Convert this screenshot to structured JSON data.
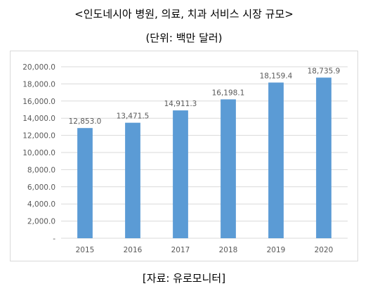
{
  "header": {
    "title": "<인도네시아 병원, 의료, 치과 서비스 시장 규모>",
    "unit_note": "(단위: 백만 달러)"
  },
  "footer": {
    "source": "[자료: 유로모니터]"
  },
  "colors": {
    "bar": "#5b9bd5",
    "gridline": "#d9d9d9",
    "axis_text": "#595959"
  },
  "chart_data": {
    "type": "bar",
    "title": "",
    "xlabel": "",
    "ylabel": "",
    "categories": [
      "2015",
      "2016",
      "2017",
      "2018",
      "2019",
      "2020"
    ],
    "values": [
      12853.0,
      13471.5,
      14911.3,
      16198.1,
      18159.4,
      18735.9
    ],
    "data_labels": [
      "12,853.0",
      "13,471.5",
      "14,911.3",
      "16,198.1",
      "18,159.4",
      "18,735.9"
    ],
    "ylim": [
      0,
      20000
    ],
    "yticks": [
      0,
      2000,
      4000,
      6000,
      8000,
      10000,
      12000,
      14000,
      16000,
      18000,
      20000
    ],
    "ytick_labels": [
      "-",
      "2,000.0",
      "4,000.0",
      "6,000.0",
      "8,000.0",
      "10,000.0",
      "12,000.0",
      "14,000.0",
      "16,000.0",
      "18,000.0",
      "20,000.0"
    ],
    "grid": true,
    "legend": "none"
  }
}
